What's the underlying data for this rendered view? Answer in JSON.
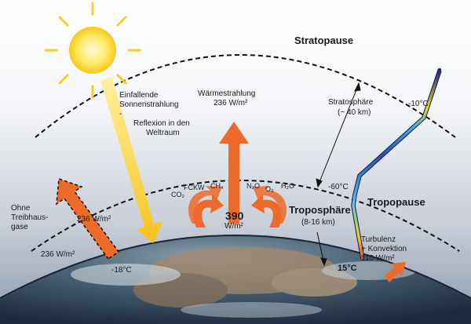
{
  "layers": {
    "stratopause": "Stratopause",
    "tropopause": "Tropopause",
    "troposphere": "Troposphäre",
    "troposphere_height": "(8-16 km)",
    "stratosphere": "Stratosphäre",
    "stratosphere_height": "(~ 40 km)"
  },
  "solar": {
    "incoming_line1": "Einfallende",
    "incoming_line2": "Sonnenstrahlung",
    "dash": "-",
    "reflection_line1": "Reflexion in den",
    "reflection_line2": "Weltraum"
  },
  "outgoing": {
    "label": "Wärmestrahlung",
    "value": "236 W/m²"
  },
  "no_ghg": {
    "line1": "Ohne",
    "line2": "Treibhaus-",
    "line3": "gase",
    "value_top": "236 W/m²",
    "value_bottom": "236 W/m²",
    "surface_temp": "-18°C"
  },
  "greenhouse_gases": {
    "co2": "CO₂",
    "fckw": "FCKW",
    "ch4": "CH₄",
    "n2o": "N₂O",
    "o3": "O₃",
    "h2o": "H₂O"
  },
  "back_radiation": {
    "value": "390",
    "unit": "W/m²"
  },
  "convection": {
    "line1": "Turbulenz",
    "line2": "+ Konvektion",
    "line3": "110 W/m²"
  },
  "temperatures": {
    "stratopause": "-10°C",
    "tropopause": "-60°C",
    "surface": "15°C"
  },
  "colors": {
    "solar_arrow": "#f5c21b",
    "heat_arrow": "#ee6a2a",
    "sky_top": "#ffffff",
    "sky_bottom": "#8d99aa"
  }
}
